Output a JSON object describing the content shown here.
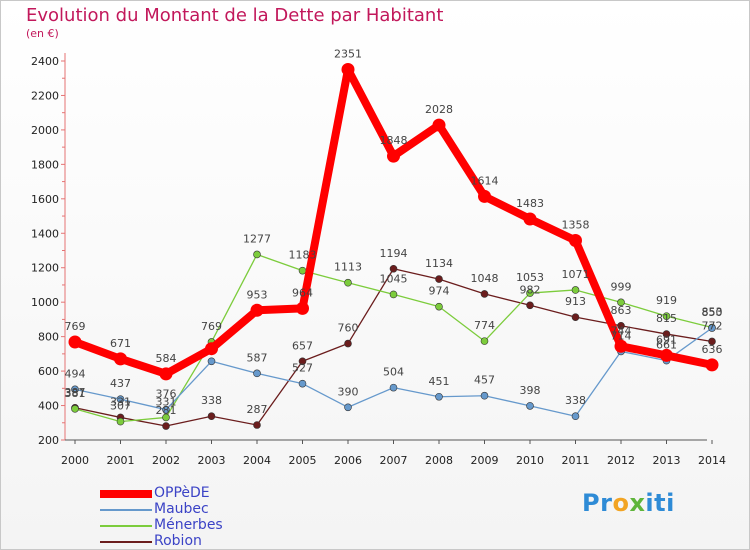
{
  "title": "Evolution du Montant de la Dette par Habitant",
  "unit_label": "(en €)",
  "brand": {
    "parts": [
      "Pr",
      "o",
      "x",
      "i",
      "ti"
    ],
    "colors": [
      "#2e8bd6",
      "#f2a423",
      "#5fb53b",
      "#2e8bd6",
      "#2e8bd6"
    ]
  },
  "chart_data": {
    "type": "line",
    "x": [
      "2000",
      "2001",
      "2002",
      "2003",
      "2004",
      "2005",
      "2006",
      "2007",
      "2008",
      "2009",
      "2010",
      "2011",
      "2012",
      "2013",
      "2014"
    ],
    "ylim": [
      200,
      2400
    ],
    "yticks": [
      200,
      400,
      600,
      800,
      1000,
      1200,
      1400,
      1600,
      1800,
      2000,
      2200,
      2400
    ],
    "grid": false,
    "legend": "bottom-left",
    "series": [
      {
        "name": "OPPèDE",
        "color": "#ff0000",
        "values": [
          769,
          671,
          584,
          730,
          953,
          964,
          2351,
          1848,
          2028,
          1614,
          1483,
          1358,
          744,
          691,
          636
        ],
        "labels": [
          "769",
          "671",
          "584",
          "",
          "953",
          "964",
          "2351",
          "1848",
          "2028",
          "1614",
          "1483",
          "1358",
          "744",
          "691",
          "636"
        ]
      },
      {
        "name": "Maubec",
        "color": "#6699cc",
        "values": [
          494,
          437,
          376,
          657,
          587,
          527,
          390,
          504,
          451,
          457,
          398,
          338,
          714,
          661,
          850
        ],
        "labels": [
          "494",
          "437",
          "376",
          "",
          "587",
          "527",
          "390",
          "504",
          "451",
          "457",
          "398",
          "338",
          "714",
          "661",
          "850"
        ]
      },
      {
        "name": "Ménerbes",
        "color": "#7ccc3c",
        "values": [
          381,
          307,
          331,
          769,
          1277,
          1183,
          1113,
          1045,
          974,
          774,
          1053,
          1071,
          999,
          919,
          853
        ],
        "labels": [
          "381",
          "307",
          "331",
          "769",
          "1277",
          "1183",
          "1113",
          "1045",
          "974",
          "774",
          "1053",
          "1071",
          "999",
          "919",
          "853"
        ]
      },
      {
        "name": "Robion",
        "color": "#6b1d1d",
        "values": [
          387,
          331,
          281,
          338,
          287,
          657,
          760,
          1194,
          1134,
          1048,
          982,
          913,
          863,
          815,
          772
        ],
        "labels": [
          "387",
          "331",
          "281",
          "338",
          "287",
          "657",
          "760",
          "1194",
          "1134",
          "1048",
          "982",
          "913",
          "863",
          "815",
          "772"
        ]
      }
    ]
  }
}
